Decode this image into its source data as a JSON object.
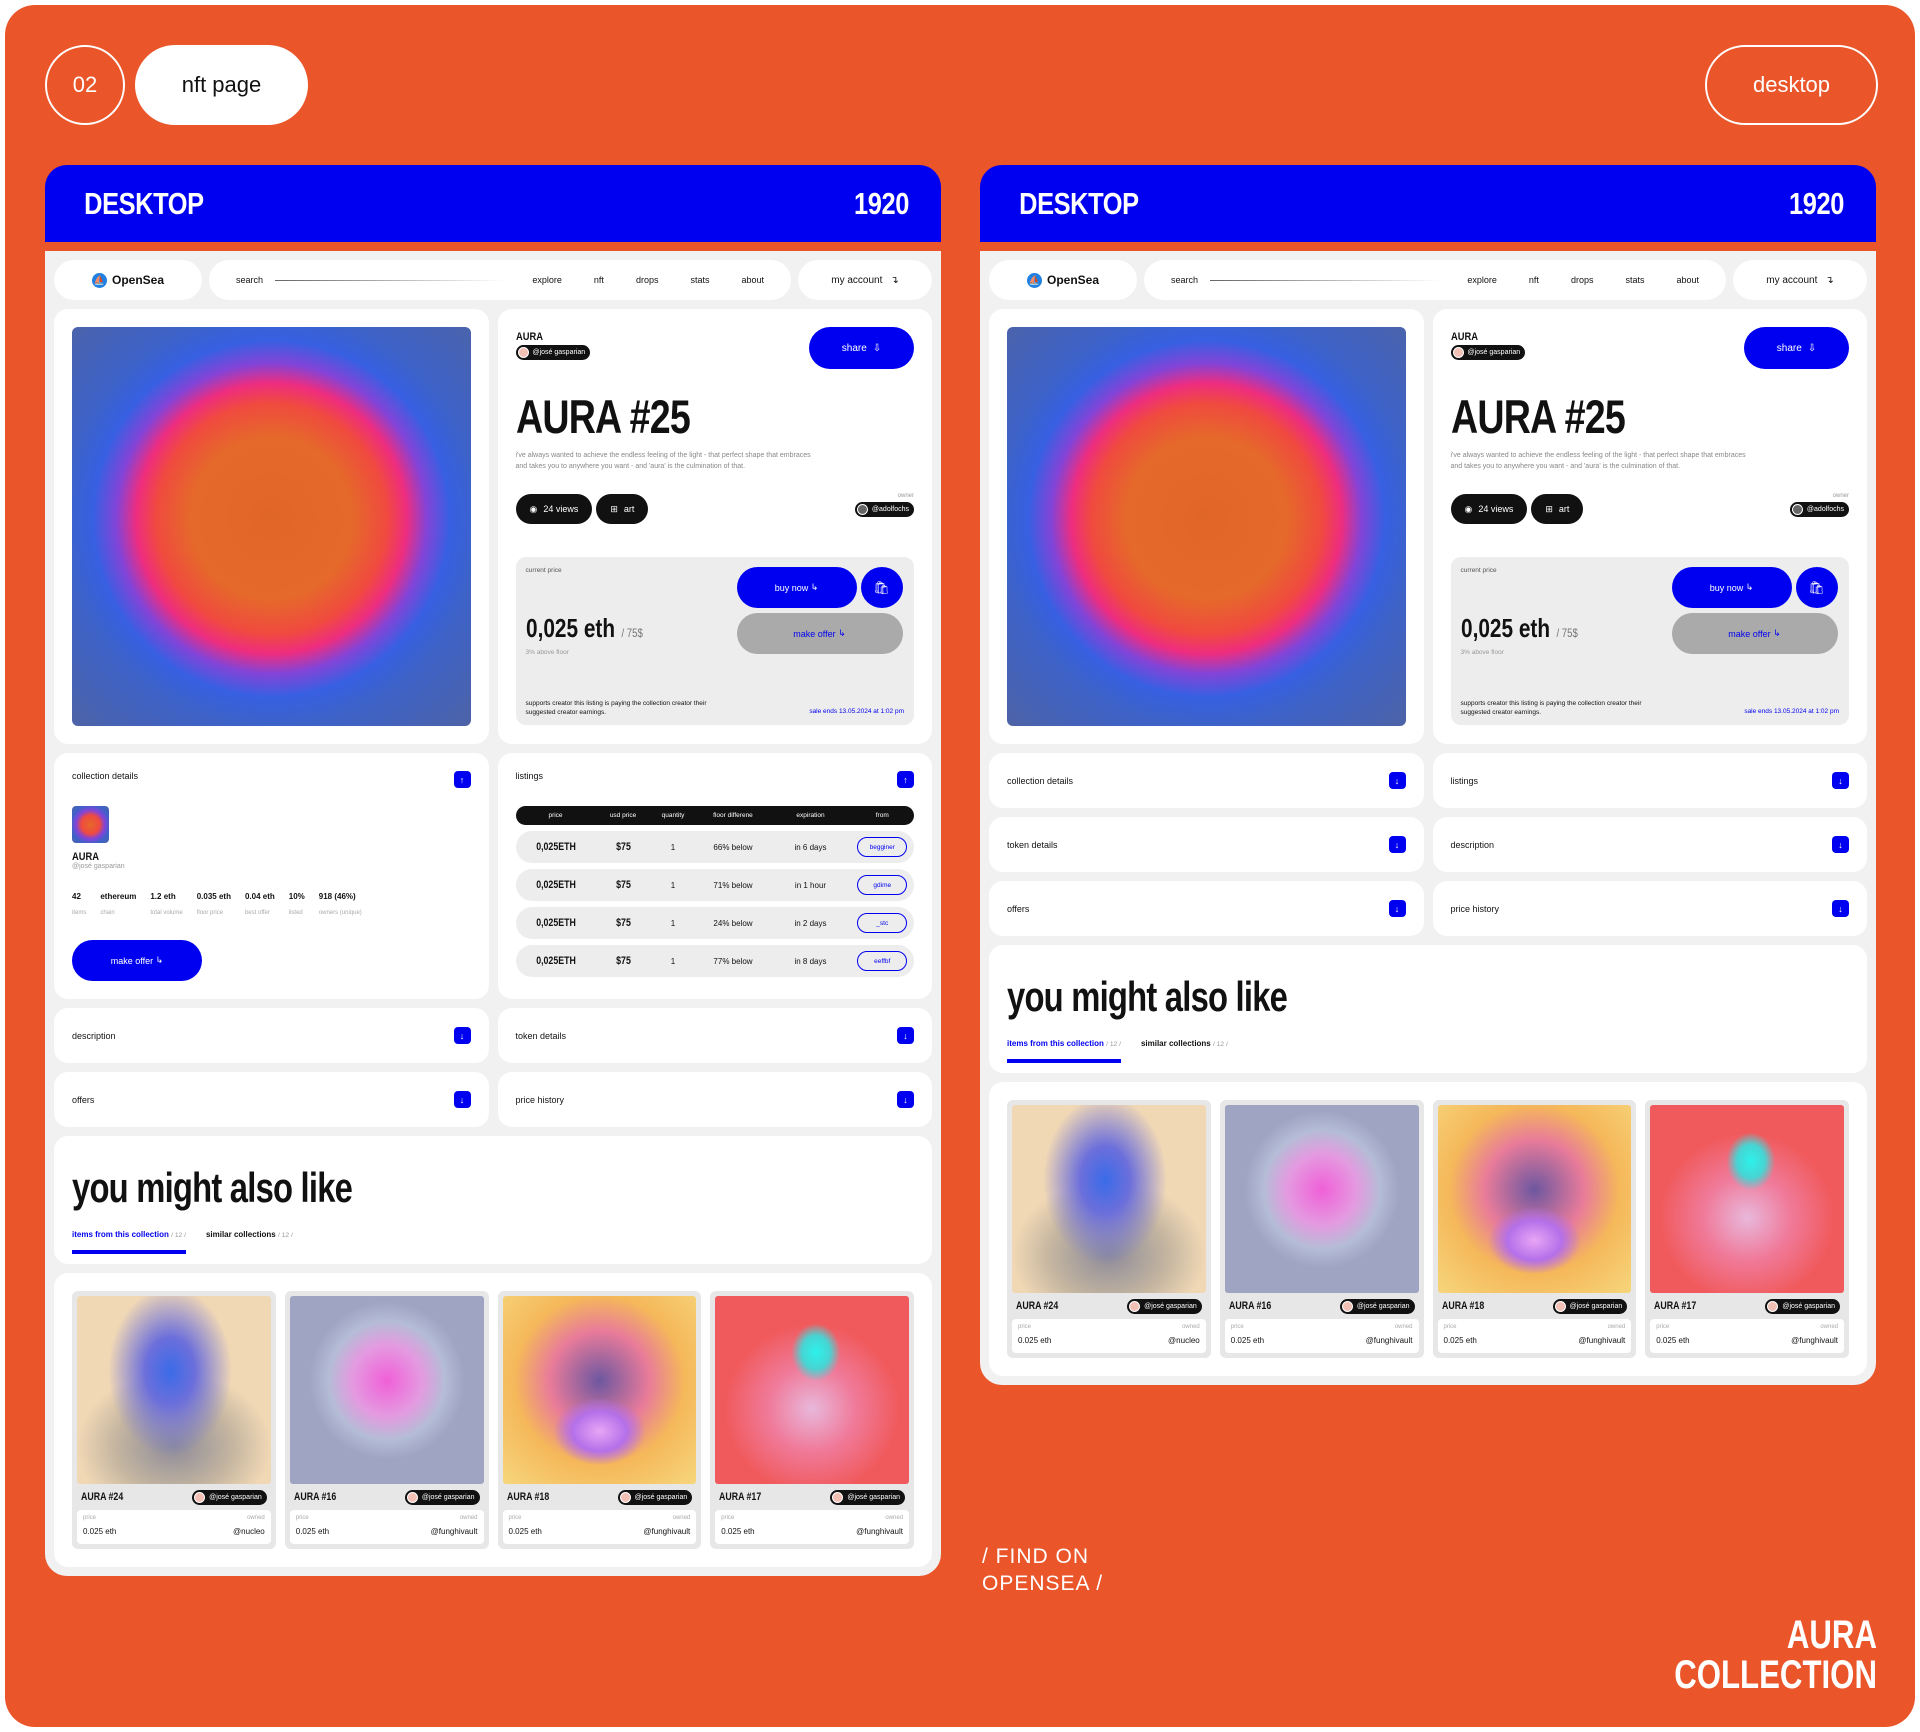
{
  "header": {
    "num": "02",
    "title": "nft page",
    "mode": "desktop"
  },
  "banner": {
    "left": "DESKTOP",
    "right": "1920"
  },
  "nav": {
    "logo": "OpenSea",
    "search": "search",
    "links": [
      "explore",
      "nft",
      "drops",
      "stats",
      "about"
    ],
    "account": "my account"
  },
  "item": {
    "collection": "AURA",
    "creator": "@josé gasparian",
    "title": "AURA #25",
    "description": "i've always wanted to achieve the endless feeling of the light - that perfect shape that embraces and takes you to anywhere you want - and 'aura' is the culmination of that.",
    "share": "share",
    "views": "24 views",
    "category": "art",
    "owner_label": "owner",
    "owner": "@adolfochs"
  },
  "price": {
    "label": "current price",
    "value": "0,025 eth",
    "usd": "/ 75$",
    "above": "3% above floor",
    "buy": "buy now",
    "offer": "make offer",
    "supports": "supports creator this listing is paying the collection creator their suggested creator earnings.",
    "sale": "sale ends 13.05.2024 at 1:02 pm"
  },
  "collection": {
    "label": "collection details",
    "name": "AURA",
    "handle": "@josé gasparian",
    "stats": [
      {
        "v": "42",
        "l": "items"
      },
      {
        "v": "ethereum",
        "l": "chain"
      },
      {
        "v": "1.2 eth",
        "l": "total volume"
      },
      {
        "v": "0.035 eth",
        "l": "floor price"
      },
      {
        "v": "0.04 eth",
        "l": "best offer"
      },
      {
        "v": "10%",
        "l": "listed"
      },
      {
        "v": "918 (46%)",
        "l": "owners (unique)"
      }
    ],
    "offer": "make offer"
  },
  "listings": {
    "label": "listings",
    "headers": [
      "price",
      "usd price",
      "quantity",
      "floor differene",
      "expiration",
      "from"
    ],
    "rows": [
      [
        "0,025ETH",
        "$75",
        "1",
        "66% below",
        "in 6 days",
        "begginer"
      ],
      [
        "0,025ETH",
        "$75",
        "1",
        "71% below",
        "in 1 hour",
        "gdime"
      ],
      [
        "0,025ETH",
        "$75",
        "1",
        "24% below",
        "in 2 days",
        "_stc"
      ],
      [
        "0,025ETH",
        "$75",
        "1",
        "77% below",
        "in 8 days",
        "eeffbf"
      ]
    ]
  },
  "accordions": {
    "description": "description",
    "token": "token details",
    "offers": "offers",
    "price_history": "price history",
    "collection": "collection details",
    "listings": "listings"
  },
  "also": {
    "title": "you might also like",
    "tab1": "items from this collection",
    "tab1_count": "/ 12 /",
    "tab2": "similar collections",
    "tab2_count": "/ 12 /"
  },
  "cards": [
    {
      "name": "AURA #24",
      "creator": "@josé gasparian",
      "price_label": "price",
      "price": "0.025 eth",
      "owned_label": "owned",
      "owner": "@nucleo"
    },
    {
      "name": "AURA #16",
      "creator": "@josé gasparian",
      "price_label": "price",
      "price": "0.025 eth",
      "owned_label": "owned",
      "owner": "@funghivault"
    },
    {
      "name": "AURA #18",
      "creator": "@josé gasparian",
      "price_label": "price",
      "price": "0.025 eth",
      "owned_label": "owned",
      "owner": "@funghivault"
    },
    {
      "name": "AURA #17",
      "creator": "@josé gasparian",
      "price_label": "price",
      "price": "0.025 eth",
      "owned_label": "owned",
      "owner": "@funghivault"
    }
  ],
  "footer": {
    "find": "/ FIND ON",
    "find2": "OPENSEA /",
    "brand1": "AURA",
    "brand2": "COLLECTION"
  },
  "colors": {
    "accent": "#0000F0",
    "background": "#EA552A"
  }
}
